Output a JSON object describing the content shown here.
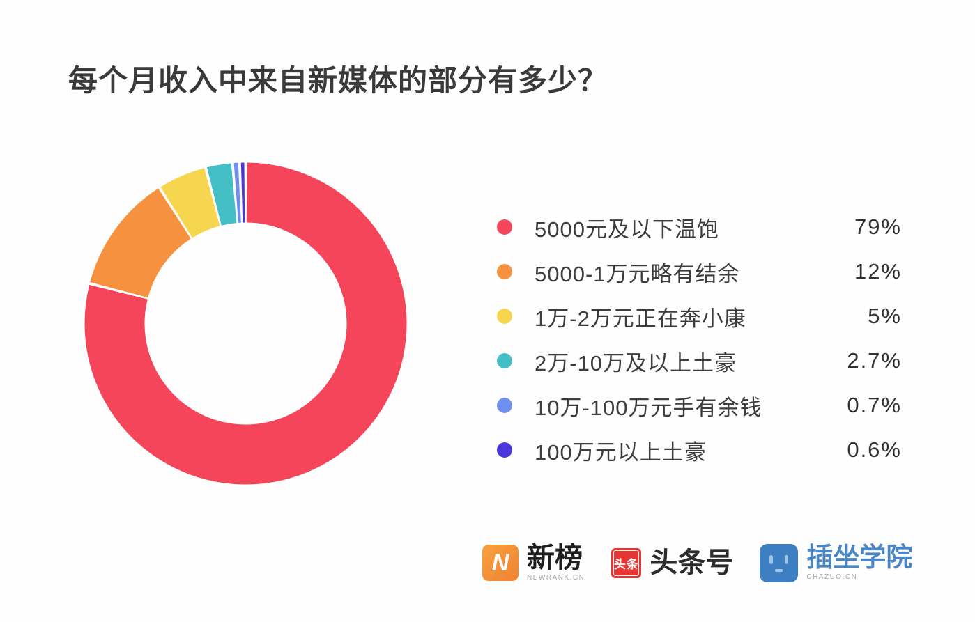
{
  "page": {
    "background": "#ffffff"
  },
  "title": "每个月收入中来自新媒体的部分有多少？",
  "chart_data": {
    "type": "pie",
    "donut": true,
    "title": "每个月收入中来自新媒体的部分有多少？",
    "start_angle_deg": 0,
    "direction": "clockwise",
    "legend_position": "right",
    "ring": {
      "outer_radius": 231,
      "inner_radius": 145,
      "gap_deg": 0.5
    },
    "segments": [
      {
        "label": "5000元及以下温饱",
        "value": 79,
        "display": "79%",
        "color": "#f4455a"
      },
      {
        "label": "5000-1万元略有结余",
        "value": 12,
        "display": "12%",
        "color": "#f6923f"
      },
      {
        "label": "1万-2万元正在奔小康",
        "value": 5,
        "display": "5%",
        "color": "#f7d64f"
      },
      {
        "label": "2万-10万及以上土豪",
        "value": 2.7,
        "display": "2.7%",
        "color": "#45bfc6"
      },
      {
        "label": "10万-100万元手有余钱",
        "value": 0.7,
        "display": "0.7%",
        "color": "#6e8fef"
      },
      {
        "label": "100万元以上土豪",
        "value": 0.6,
        "display": "0.6%",
        "color": "#4b38dc"
      }
    ]
  },
  "footer": {
    "logos": {
      "newrank": {
        "mark": "N",
        "text": "新榜",
        "subtext": "NEWRANK.CN",
        "color": "#f6913d"
      },
      "toutiao": {
        "mark": "头条",
        "text": "头条号",
        "color": "#e63532"
      },
      "chazuo": {
        "text": "插坐学院",
        "subtext": "CHAZUO.CN",
        "color": "#3e7fc1"
      }
    }
  }
}
